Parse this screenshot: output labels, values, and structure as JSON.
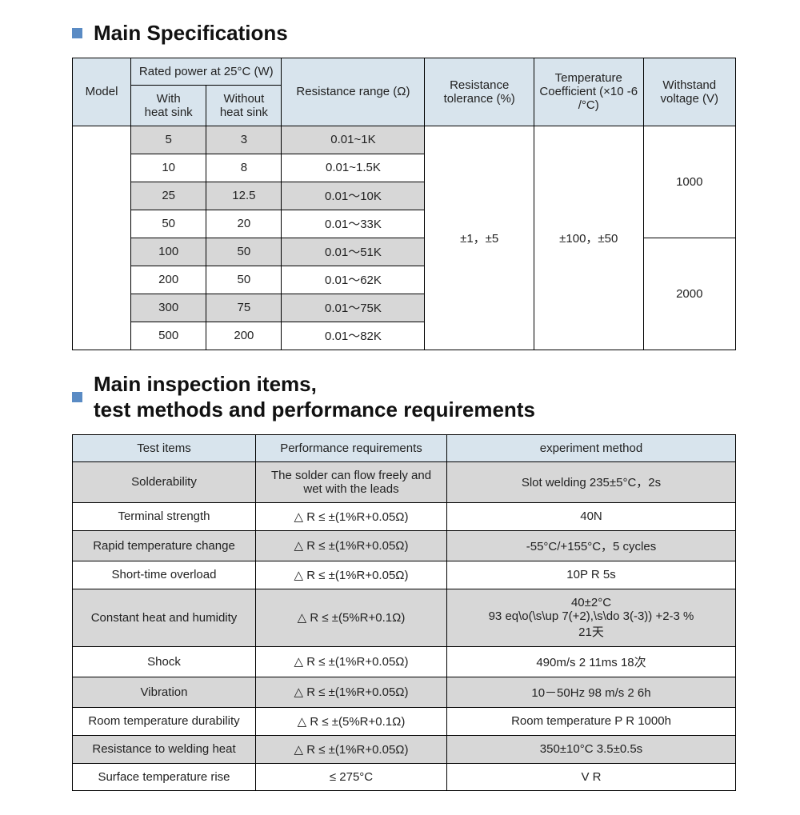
{
  "section1": {
    "title": "Main Specifications",
    "table": {
      "headers": {
        "model": "Model",
        "rated_group": "Rated power at 25°C (W)",
        "with": "With\nheat sink",
        "without": "Without\nheat sink",
        "range": "Resistance range (Ω)",
        "tol": "Resistance tolerance (%)",
        "tc": "Temperature Coefficient (×10 -6 /°C)",
        "volt": "Withstand voltage (V)"
      },
      "rows": [
        {
          "with": "5",
          "without": "3",
          "range": "0.01~1K"
        },
        {
          "with": "10",
          "without": "8",
          "range": "0.01~1.5K"
        },
        {
          "with": "25",
          "without": "12.5",
          "range": "0.01～10K"
        },
        {
          "with": "50",
          "without": "20",
          "range": "0.01～33K"
        },
        {
          "with": "100",
          "without": "50",
          "range": "0.01～51K"
        },
        {
          "with": "200",
          "without": "50",
          "range": "0.01～62K"
        },
        {
          "with": "300",
          "without": "75",
          "range": "0.01～75K"
        },
        {
          "with": "500",
          "without": "200",
          "range": "0.01～82K"
        }
      ],
      "tol_value": "±1，±5",
      "tc_value": "±100，±50",
      "volt_top": "1000",
      "volt_bottom": "2000"
    }
  },
  "section2": {
    "title": "Main inspection items,\ntest methods and performance requirements",
    "table": {
      "headers": {
        "c1": "Test items",
        "c2": "Performance requirements",
        "c3": "experiment method"
      },
      "rows": [
        {
          "c1": "Solderability",
          "c2": "The solder can flow freely and wet with the leads",
          "c3": "Slot welding  235±5°C，2s",
          "shade": "grey"
        },
        {
          "c1": "Terminal strength",
          "c2": "△ R ≤ ±(1%R+0.05Ω)",
          "c3": "40N",
          "shade": "white"
        },
        {
          "c1": "Rapid temperature change",
          "c2": "△ R ≤ ±(1%R+0.05Ω)",
          "c3": "-55°C/+155°C，5 cycles",
          "shade": "grey"
        },
        {
          "c1": "Short-time overload",
          "c2": "△ R ≤ ±(1%R+0.05Ω)",
          "c3": "10P R    5s",
          "shade": "white"
        },
        {
          "c1": "Constant heat and humidity",
          "c2": "△ R ≤ ±(5%R+0.1Ω)",
          "c3": "40±2°C\n93 eq\\o(\\s\\up 7(+2),\\s\\do 3(-3)) +2-3 %\n21天",
          "shade": "grey"
        },
        {
          "c1": "Shock",
          "c2": "△ R ≤ ±(1%R+0.05Ω)",
          "c3": "490m/s 2 11ms 18次",
          "shade": "white"
        },
        {
          "c1": "Vibration",
          "c2": "△ R ≤ ±(1%R+0.05Ω)",
          "c3": "10－50Hz 98 m/s 2 6h",
          "shade": "grey"
        },
        {
          "c1": "Room temperature durability",
          "c2": "△ R ≤ ±(5%R+0.1Ω)",
          "c3": "Room temperature  P R    1000h",
          "shade": "white"
        },
        {
          "c1": "Resistance to welding heat",
          "c2": "△ R ≤ ±(1%R+0.05Ω)",
          "c3": "350±10°C    3.5±0.5s",
          "shade": "grey"
        },
        {
          "c1": "Surface temperature rise",
          "c2": "≤ 275°C",
          "c3": "V R",
          "shade": "white"
        }
      ]
    }
  }
}
